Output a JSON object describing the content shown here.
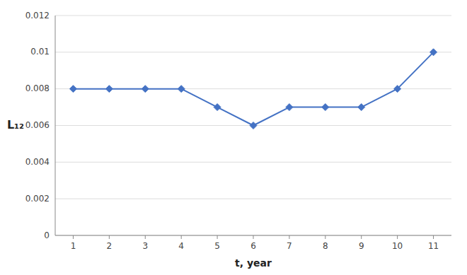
{
  "chart_data": {
    "type": "line",
    "xlabel": "t, year",
    "ylabel": "L₁₂",
    "x": [
      1,
      2,
      3,
      4,
      5,
      6,
      7,
      8,
      9,
      10,
      11
    ],
    "values": [
      0.008,
      0.008,
      0.008,
      0.008,
      0.007,
      0.006,
      0.007,
      0.007,
      0.007,
      0.008,
      0.01
    ],
    "color": "#4472C4",
    "marker": "diamond",
    "xlim": [
      0.5,
      11.5
    ],
    "ylim": [
      0,
      0.012
    ],
    "xticks": [
      1,
      2,
      3,
      4,
      5,
      6,
      7,
      8,
      9,
      10,
      11
    ],
    "yticks": [
      0,
      0.002,
      0.004,
      0.006,
      0.008,
      0.01,
      0.012
    ],
    "grid": true
  }
}
